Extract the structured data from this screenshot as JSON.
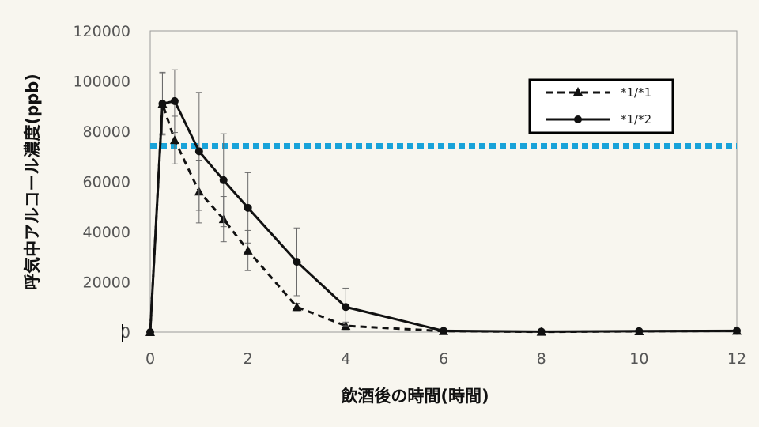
{
  "chart_data": {
    "type": "line",
    "xlabel": "飲酒後の時間(時間)",
    "ylabel": "呼気中アルコール濃度(ppb)",
    "xlim": [
      0,
      12
    ],
    "ylim": [
      0,
      120000
    ],
    "x_ticks": [
      "0",
      "2",
      "4",
      "6",
      "8",
      "10",
      "12"
    ],
    "y_ticks": [
      "0",
      "20000",
      "40000",
      "60000",
      "80000",
      "100000",
      "120000"
    ],
    "grid": false,
    "legend_position": "top-right",
    "reference_line": {
      "y": 74000,
      "color": "#1aa3d9",
      "style": "dotted"
    },
    "series": [
      {
        "name": "*1/*1",
        "marker": "triangle",
        "line_style": "dashed",
        "color": "#111111",
        "x": [
          0,
          0.25,
          0.5,
          1,
          1.5,
          2,
          3,
          4,
          6,
          8,
          10,
          12
        ],
        "y": [
          0,
          91000,
          76500,
          56000,
          45000,
          32500,
          10000,
          2500,
          400,
          100,
          300,
          500
        ],
        "error": [
          0,
          12500,
          9500,
          12500,
          9000,
          8000,
          1500,
          1500,
          300,
          100,
          200,
          300
        ]
      },
      {
        "name": "*1/*2",
        "marker": "circle",
        "line_style": "solid",
        "color": "#111111",
        "x": [
          0,
          0.25,
          0.5,
          1,
          1.5,
          2,
          3,
          4,
          6,
          8,
          10,
          12
        ],
        "y": [
          0,
          91000,
          92000,
          72000,
          60500,
          49500,
          28000,
          10000,
          500,
          200,
          400,
          500
        ],
        "error": [
          0,
          12000,
          12500,
          23500,
          18500,
          14000,
          13500,
          7500,
          400,
          200,
          200,
          300
        ]
      }
    ]
  }
}
